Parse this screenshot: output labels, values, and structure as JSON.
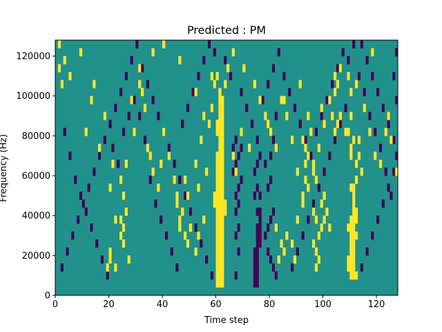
{
  "chart_data": {
    "type": "heatmap",
    "title": "Predicted : PM",
    "xlabel": "Time step",
    "ylabel": "Frequency (Hz)",
    "xlim": [
      0,
      128
    ],
    "ylim": [
      0,
      128000
    ],
    "rows": 32,
    "cols": 128,
    "xticks": [
      0,
      20,
      40,
      60,
      80,
      100,
      120
    ],
    "yticks": [
      0,
      20000,
      40000,
      60000,
      80000,
      100000,
      120000
    ],
    "xtick_labels": [
      "0",
      "20",
      "40",
      "60",
      "80",
      "100",
      "120"
    ],
    "ytick_labels": [
      "0",
      "20000",
      "40000",
      "60000",
      "80000",
      "100000",
      "120000"
    ],
    "colors": {
      "background": "#21918c",
      "low": "#440154",
      "high": "#fde725"
    },
    "value_levels": {
      "low": -1,
      "background": 0,
      "high": 1
    },
    "high_cells": [
      [
        60,
        1
      ],
      [
        61,
        1
      ],
      [
        62,
        1
      ],
      [
        60,
        2
      ],
      [
        61,
        2
      ],
      [
        62,
        2
      ],
      [
        60,
        3
      ],
      [
        61,
        3
      ],
      [
        62,
        3
      ],
      [
        60,
        4
      ],
      [
        61,
        4
      ],
      [
        62,
        4
      ],
      [
        60,
        5
      ],
      [
        61,
        5
      ],
      [
        62,
        5
      ],
      [
        60,
        6
      ],
      [
        61,
        6
      ],
      [
        62,
        6
      ],
      [
        60,
        7
      ],
      [
        61,
        7
      ],
      [
        62,
        7
      ],
      [
        60,
        8
      ],
      [
        61,
        8
      ],
      [
        62,
        8
      ],
      [
        60,
        9
      ],
      [
        61,
        9
      ],
      [
        62,
        9
      ],
      [
        60,
        10
      ],
      [
        61,
        10
      ],
      [
        62,
        10
      ],
      [
        63,
        10
      ],
      [
        59,
        11
      ],
      [
        60,
        11
      ],
      [
        61,
        11
      ],
      [
        62,
        11
      ],
      [
        63,
        11
      ],
      [
        59,
        12
      ],
      [
        60,
        12
      ],
      [
        61,
        12
      ],
      [
        62,
        12
      ],
      [
        60,
        13
      ],
      [
        61,
        13
      ],
      [
        62,
        13
      ],
      [
        60,
        14
      ],
      [
        61,
        14
      ],
      [
        62,
        14
      ],
      [
        60,
        15
      ],
      [
        61,
        15
      ],
      [
        62,
        15
      ],
      [
        60,
        16
      ],
      [
        61,
        16
      ],
      [
        62,
        16
      ],
      [
        60,
        17
      ],
      [
        61,
        17
      ],
      [
        62,
        17
      ],
      [
        61,
        18
      ],
      [
        62,
        18
      ],
      [
        61,
        19
      ],
      [
        62,
        19
      ],
      [
        60,
        20
      ],
      [
        61,
        20
      ],
      [
        62,
        20
      ],
      [
        60,
        21
      ],
      [
        61,
        21
      ],
      [
        62,
        21
      ],
      [
        61,
        22
      ],
      [
        62,
        22
      ],
      [
        61,
        23
      ],
      [
        62,
        23
      ],
      [
        61,
        24
      ],
      [
        62,
        24
      ],
      [
        61,
        25
      ],
      [
        110,
        2
      ],
      [
        111,
        2
      ],
      [
        112,
        2
      ],
      [
        109,
        3
      ],
      [
        110,
        3
      ],
      [
        111,
        3
      ],
      [
        109,
        4
      ],
      [
        110,
        4
      ],
      [
        111,
        4
      ],
      [
        110,
        5
      ],
      [
        111,
        5
      ],
      [
        110,
        6
      ],
      [
        111,
        6
      ],
      [
        110,
        7
      ],
      [
        111,
        7
      ],
      [
        112,
        7
      ],
      [
        109,
        8
      ],
      [
        110,
        8
      ],
      [
        111,
        8
      ],
      [
        110,
        9
      ],
      [
        111,
        9
      ],
      [
        112,
        9
      ],
      [
        111,
        10
      ],
      [
        112,
        10
      ],
      [
        111,
        11
      ],
      [
        111,
        12
      ],
      [
        110,
        13
      ],
      [
        111,
        13
      ],
      [
        97,
        3
      ],
      [
        98,
        4
      ],
      [
        97,
        5
      ],
      [
        96,
        6
      ],
      [
        98,
        7
      ],
      [
        99,
        8
      ],
      [
        97,
        9
      ],
      [
        96,
        10
      ],
      [
        100,
        9
      ],
      [
        99,
        11
      ],
      [
        97,
        14
      ],
      [
        96,
        15
      ],
      [
        101,
        10
      ],
      [
        102,
        8
      ],
      [
        100,
        12
      ],
      [
        19,
        3
      ],
      [
        20,
        4
      ],
      [
        20,
        5
      ],
      [
        25,
        6
      ],
      [
        24,
        7
      ],
      [
        25,
        8
      ],
      [
        24,
        9
      ],
      [
        26,
        10
      ],
      [
        22,
        3
      ],
      [
        27,
        4
      ],
      [
        48,
        7
      ],
      [
        49,
        6
      ],
      [
        50,
        8
      ],
      [
        46,
        9
      ],
      [
        47,
        10
      ],
      [
        45,
        12
      ],
      [
        48,
        14
      ],
      [
        53,
        13
      ],
      [
        56,
        15
      ],
      [
        53,
        7
      ],
      [
        55,
        9
      ],
      [
        52,
        5
      ],
      [
        85,
        5
      ],
      [
        84,
        6
      ],
      [
        83,
        4
      ],
      [
        86,
        7
      ],
      [
        82,
        8
      ],
      [
        88,
        6
      ],
      [
        89,
        4
      ],
      [
        90,
        9
      ],
      [
        92,
        12
      ],
      [
        93,
        14
      ],
      [
        112,
        16
      ],
      [
        113,
        17
      ],
      [
        114,
        15
      ],
      [
        112,
        14
      ],
      [
        110,
        18
      ],
      [
        111,
        19
      ],
      [
        109,
        20
      ],
      [
        104,
        20
      ],
      [
        105,
        21
      ],
      [
        109,
        27
      ],
      [
        110,
        22
      ],
      [
        104,
        27
      ],
      [
        105,
        26
      ],
      [
        103,
        22
      ],
      [
        110,
        25
      ],
      [
        93,
        18
      ],
      [
        94,
        17
      ],
      [
        93,
        16
      ],
      [
        92,
        19
      ],
      [
        95,
        20
      ],
      [
        94,
        22
      ],
      [
        1,
        31
      ],
      [
        1,
        28
      ],
      [
        2,
        26
      ],
      [
        3,
        29
      ],
      [
        5,
        27
      ],
      [
        9,
        30
      ],
      [
        11,
        20
      ],
      [
        13,
        24
      ],
      [
        14,
        26
      ],
      [
        16,
        18
      ],
      [
        18,
        22
      ],
      [
        20,
        13
      ],
      [
        21,
        16
      ],
      [
        22,
        9
      ],
      [
        24,
        14
      ],
      [
        25,
        12
      ],
      [
        26,
        16
      ],
      [
        28,
        24
      ],
      [
        29,
        20
      ],
      [
        31,
        26
      ],
      [
        32,
        25
      ],
      [
        33,
        23
      ],
      [
        34,
        18
      ],
      [
        35,
        17
      ],
      [
        36,
        15
      ],
      [
        38,
        13
      ],
      [
        39,
        16
      ],
      [
        40,
        20
      ],
      [
        42,
        17
      ],
      [
        44,
        14
      ],
      [
        45,
        11
      ],
      [
        46,
        8
      ],
      [
        49,
        12
      ],
      [
        52,
        16
      ],
      [
        54,
        19
      ],
      [
        55,
        22
      ],
      [
        57,
        21
      ],
      [
        58,
        23
      ],
      [
        59,
        26
      ],
      [
        60,
        27
      ],
      [
        63,
        26
      ],
      [
        64,
        28
      ],
      [
        66,
        17
      ],
      [
        67,
        15
      ],
      [
        69,
        20
      ],
      [
        72,
        18
      ],
      [
        74,
        26
      ],
      [
        76,
        24
      ],
      [
        78,
        22
      ],
      [
        80,
        20
      ],
      [
        82,
        18
      ],
      [
        84,
        24
      ],
      [
        86,
        22
      ],
      [
        88,
        19
      ],
      [
        90,
        15
      ],
      [
        92,
        11
      ],
      [
        94,
        13
      ],
      [
        96,
        16
      ],
      [
        98,
        18
      ],
      [
        100,
        21
      ],
      [
        102,
        24
      ],
      [
        104,
        25
      ],
      [
        106,
        22
      ],
      [
        108,
        20
      ],
      [
        110,
        17
      ],
      [
        113,
        19
      ],
      [
        115,
        23
      ],
      [
        117,
        20
      ],
      [
        119,
        17
      ],
      [
        121,
        16
      ],
      [
        123,
        20
      ],
      [
        125,
        19
      ],
      [
        127,
        15
      ],
      [
        31,
        28
      ],
      [
        36,
        30
      ],
      [
        40,
        31
      ],
      [
        46,
        29
      ],
      [
        52,
        25
      ],
      [
        58,
        27
      ],
      [
        66,
        30
      ],
      [
        70,
        28
      ],
      [
        79,
        21
      ],
      [
        85,
        24
      ],
      [
        91,
        26
      ],
      [
        99,
        23
      ],
      [
        106,
        28
      ],
      [
        112,
        26
      ],
      [
        118,
        30
      ],
      [
        124,
        22
      ]
    ],
    "low_cells": [
      [
        74,
        1
      ],
      [
        75,
        1
      ],
      [
        74,
        2
      ],
      [
        75,
        2
      ],
      [
        74,
        3
      ],
      [
        75,
        3
      ],
      [
        74,
        4
      ],
      [
        75,
        4
      ],
      [
        74,
        5
      ],
      [
        75,
        5
      ],
      [
        75,
        6
      ],
      [
        76,
        6
      ],
      [
        75,
        7
      ],
      [
        76,
        7
      ],
      [
        75,
        8
      ],
      [
        76,
        8
      ],
      [
        76,
        9
      ],
      [
        75,
        10
      ],
      [
        76,
        10
      ],
      [
        76,
        12
      ],
      [
        75,
        13
      ],
      [
        74,
        12
      ],
      [
        75,
        16
      ],
      [
        74,
        15
      ],
      [
        76,
        17
      ],
      [
        75,
        19
      ],
      [
        67,
        2
      ],
      [
        68,
        5
      ],
      [
        67,
        7
      ],
      [
        68,
        8
      ],
      [
        67,
        10
      ],
      [
        68,
        11
      ],
      [
        67,
        12
      ],
      [
        68,
        13
      ],
      [
        69,
        14
      ],
      [
        66,
        15
      ],
      [
        67,
        16
      ],
      [
        68,
        17
      ],
      [
        66,
        18
      ],
      [
        67,
        19
      ],
      [
        69,
        18
      ],
      [
        79,
        5
      ],
      [
        80,
        4
      ],
      [
        81,
        3
      ],
      [
        82,
        2
      ],
      [
        78,
        7
      ],
      [
        79,
        8
      ],
      [
        80,
        9
      ],
      [
        81,
        10
      ],
      [
        79,
        13
      ],
      [
        80,
        14
      ],
      [
        78,
        16
      ],
      [
        80,
        17
      ],
      [
        81,
        19
      ],
      [
        80,
        20
      ],
      [
        82,
        22
      ],
      [
        2,
        3
      ],
      [
        4,
        5
      ],
      [
        6,
        7
      ],
      [
        8,
        9
      ],
      [
        10,
        11
      ],
      [
        12,
        13
      ],
      [
        14,
        15
      ],
      [
        16,
        17
      ],
      [
        18,
        19
      ],
      [
        20,
        21
      ],
      [
        22,
        23
      ],
      [
        24,
        25
      ],
      [
        26,
        27
      ],
      [
        28,
        29
      ],
      [
        30,
        31
      ],
      [
        32,
        28
      ],
      [
        34,
        26
      ],
      [
        36,
        24
      ],
      [
        38,
        22
      ],
      [
        40,
        20
      ],
      [
        42,
        18
      ],
      [
        44,
        16
      ],
      [
        46,
        14
      ],
      [
        48,
        12
      ],
      [
        50,
        10
      ],
      [
        52,
        8
      ],
      [
        54,
        6
      ],
      [
        56,
        4
      ],
      [
        58,
        2
      ],
      [
        88,
        3
      ],
      [
        90,
        5
      ],
      [
        92,
        7
      ],
      [
        94,
        9
      ],
      [
        96,
        11
      ],
      [
        98,
        13
      ],
      [
        100,
        15
      ],
      [
        102,
        17
      ],
      [
        104,
        19
      ],
      [
        106,
        21
      ],
      [
        108,
        23
      ],
      [
        114,
        3
      ],
      [
        116,
        5
      ],
      [
        118,
        7
      ],
      [
        120,
        9
      ],
      [
        122,
        11
      ],
      [
        124,
        13
      ],
      [
        126,
        15
      ],
      [
        127,
        17
      ],
      [
        126,
        19
      ],
      [
        124,
        21
      ],
      [
        122,
        23
      ],
      [
        120,
        25
      ],
      [
        118,
        27
      ],
      [
        116,
        29
      ],
      [
        114,
        31
      ],
      [
        127,
        30
      ],
      [
        126,
        27
      ],
      [
        127,
        24
      ],
      [
        3,
        20
      ],
      [
        5,
        17
      ],
      [
        7,
        14
      ],
      [
        9,
        12
      ],
      [
        11,
        10
      ],
      [
        13,
        8
      ],
      [
        15,
        6
      ],
      [
        17,
        4
      ],
      [
        19,
        2
      ],
      [
        21,
        18
      ],
      [
        23,
        16
      ],
      [
        25,
        20
      ],
      [
        27,
        22
      ],
      [
        29,
        24
      ],
      [
        31,
        22
      ],
      [
        33,
        19
      ],
      [
        35,
        14
      ],
      [
        37,
        11
      ],
      [
        39,
        9
      ],
      [
        41,
        7
      ],
      [
        43,
        5
      ],
      [
        45,
        3
      ],
      [
        47,
        21
      ],
      [
        49,
        23
      ],
      [
        51,
        25
      ],
      [
        53,
        27
      ],
      [
        55,
        29
      ],
      [
        57,
        31
      ],
      [
        59,
        30
      ],
      [
        63,
        29
      ],
      [
        65,
        27
      ],
      [
        69,
        25
      ],
      [
        71,
        23
      ],
      [
        73,
        21
      ],
      [
        77,
        24
      ],
      [
        79,
        26
      ],
      [
        81,
        28
      ],
      [
        83,
        30
      ],
      [
        85,
        27
      ],
      [
        87,
        25
      ],
      [
        89,
        23
      ],
      [
        91,
        21
      ],
      [
        93,
        19
      ],
      [
        95,
        17
      ],
      [
        97,
        20
      ],
      [
        99,
        22
      ],
      [
        101,
        24
      ],
      [
        103,
        26
      ],
      [
        105,
        28
      ],
      [
        107,
        30
      ],
      [
        109,
        29
      ],
      [
        111,
        31
      ],
      [
        113,
        27
      ],
      [
        115,
        25
      ],
      [
        117,
        22
      ],
      [
        119,
        20
      ],
      [
        121,
        18
      ],
      [
        123,
        15
      ],
      [
        125,
        12
      ]
    ]
  }
}
